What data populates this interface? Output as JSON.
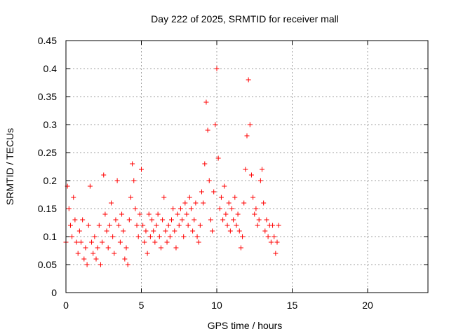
{
  "chart_data": {
    "type": "scatter",
    "title": "Day 222 of 2025, SRMTID for receiver mall",
    "xlabel": "GPS time / hours",
    "ylabel": "SRMTID / TECUs",
    "xlim": [
      0,
      24
    ],
    "ylim": [
      0,
      0.45
    ],
    "x_ticks": [
      0,
      5,
      10,
      15,
      20
    ],
    "x_tick_labels": [
      "0",
      "5",
      "10",
      "15",
      "20"
    ],
    "y_ticks": [
      0,
      0.05,
      0.1,
      0.15,
      0.2,
      0.25,
      0.3,
      0.35,
      0.4,
      0.45
    ],
    "y_tick_labels": [
      "0",
      "0.05",
      "0.1",
      "0.15",
      "0.2",
      "0.25",
      "0.3",
      "0.35",
      "0.4",
      "0.45"
    ],
    "grid": true,
    "legend": "none",
    "marker": "plus",
    "colors": {
      "series": "#ff0000",
      "grid": "#a0a0a0",
      "axis": "#000000"
    },
    "series": [
      {
        "x": [
          0.0,
          0.1,
          0.2,
          0.3,
          0.4,
          0.5,
          0.6,
          0.7,
          0.8,
          0.9,
          1.0,
          1.1,
          1.2,
          1.3,
          1.4,
          1.5,
          1.6,
          1.7,
          1.8,
          1.9,
          2.0,
          2.1,
          2.2,
          2.3,
          2.4,
          2.5,
          2.6,
          2.7,
          2.8,
          2.9,
          3.0,
          3.1,
          3.2,
          3.3,
          3.4,
          3.5,
          3.6,
          3.7,
          3.8,
          3.9,
          4.0,
          4.1,
          4.2,
          4.3,
          4.4,
          4.5,
          4.6,
          4.7,
          4.8,
          4.9,
          5.0,
          5.1,
          5.2,
          5.3,
          5.4,
          5.5,
          5.6,
          5.7,
          5.8,
          5.9,
          6.0,
          6.1,
          6.2,
          6.3,
          6.4,
          6.5,
          6.6,
          6.7,
          6.8,
          6.9,
          7.0,
          7.1,
          7.2,
          7.3,
          7.4,
          7.5,
          7.6,
          7.7,
          7.8,
          7.9,
          8.0,
          8.1,
          8.2,
          8.3,
          8.4,
          8.5,
          8.6,
          8.7,
          8.8,
          8.9,
          9.0,
          9.1,
          9.2,
          9.3,
          9.4,
          9.5,
          9.6,
          9.7,
          9.8,
          9.9,
          10.0,
          10.1,
          10.2,
          10.3,
          10.4,
          10.5,
          10.6,
          10.7,
          10.8,
          10.9,
          11.0,
          11.1,
          11.2,
          11.3,
          11.4,
          11.5,
          11.6,
          11.7,
          11.8,
          11.9,
          12.0,
          12.1,
          12.2,
          12.3,
          12.4,
          12.5,
          12.6,
          12.7,
          12.8,
          12.9,
          13.0,
          13.1,
          13.2,
          13.3,
          13.4,
          13.5,
          13.6,
          13.7,
          13.8,
          13.9,
          14.0,
          14.1
        ],
        "y": [
          0.09,
          0.19,
          0.15,
          0.12,
          0.1,
          0.17,
          0.13,
          0.09,
          0.07,
          0.11,
          0.09,
          0.13,
          0.06,
          0.08,
          0.05,
          0.12,
          0.19,
          0.09,
          0.07,
          0.1,
          0.06,
          0.08,
          0.12,
          0.05,
          0.09,
          0.21,
          0.14,
          0.11,
          0.08,
          0.12,
          0.16,
          0.1,
          0.07,
          0.13,
          0.2,
          0.12,
          0.09,
          0.14,
          0.11,
          0.06,
          0.08,
          0.05,
          0.13,
          0.17,
          0.23,
          0.2,
          0.15,
          0.12,
          0.1,
          0.14,
          0.22,
          0.12,
          0.09,
          0.11,
          0.07,
          0.14,
          0.1,
          0.13,
          0.11,
          0.09,
          0.12,
          0.14,
          0.1,
          0.08,
          0.13,
          0.17,
          0.11,
          0.09,
          0.12,
          0.1,
          0.13,
          0.15,
          0.11,
          0.08,
          0.14,
          0.12,
          0.15,
          0.13,
          0.1,
          0.16,
          0.14,
          0.12,
          0.17,
          0.15,
          0.11,
          0.13,
          0.16,
          0.1,
          0.09,
          0.12,
          0.18,
          0.16,
          0.23,
          0.34,
          0.29,
          0.2,
          0.13,
          0.11,
          0.18,
          0.3,
          0.4,
          0.24,
          0.15,
          0.17,
          0.13,
          0.19,
          0.14,
          0.12,
          0.16,
          0.11,
          0.15,
          0.13,
          0.17,
          0.12,
          0.14,
          0.11,
          0.08,
          0.1,
          0.16,
          0.22,
          0.28,
          0.38,
          0.3,
          0.21,
          0.17,
          0.14,
          0.15,
          0.12,
          0.13,
          0.2,
          0.22,
          0.16,
          0.11,
          0.13,
          0.1,
          0.12,
          0.09,
          0.12,
          0.1,
          0.07,
          0.09,
          0.12
        ]
      }
    ]
  }
}
